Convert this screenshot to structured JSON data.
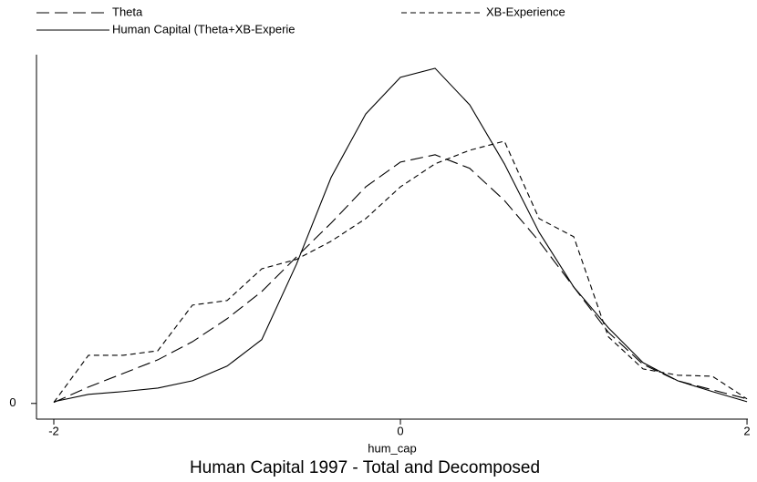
{
  "chart_data": {
    "type": "line",
    "title": "Human Capital 1997 - Total and Decomposed",
    "x_label": "hum_cap",
    "x": [
      -2,
      -1.8,
      -1.6,
      -1.4,
      -1.2,
      -1,
      -0.8,
      -0.6,
      -0.4,
      -0.2,
      0,
      0.2,
      0.4,
      0.6,
      0.8,
      1,
      1.2,
      1.4,
      1.6,
      1.8,
      2
    ],
    "series": [
      {
        "name": "Theta",
        "color": "#000000",
        "dash": "14 6",
        "values": [
          0.003,
          0.047,
          0.086,
          0.125,
          0.177,
          0.243,
          0.321,
          0.42,
          0.517,
          0.621,
          0.692,
          0.713,
          0.674,
          0.582,
          0.465,
          0.334,
          0.204,
          0.112,
          0.065,
          0.039,
          0.013
        ]
      },
      {
        "name": "XB-Experience",
        "color": "#000000",
        "dash": "6 4",
        "values": [
          0.003,
          0.138,
          0.138,
          0.151,
          0.282,
          0.295,
          0.386,
          0.413,
          0.465,
          0.53,
          0.621,
          0.687,
          0.726,
          0.752,
          0.53,
          0.478,
          0.191,
          0.099,
          0.081,
          0.078,
          0.013
        ]
      },
      {
        "name": "Human Capital (Theta+XB-Experie",
        "color": "#000000",
        "dash": "none",
        "values": [
          0.005,
          0.026,
          0.034,
          0.044,
          0.065,
          0.107,
          0.183,
          0.399,
          0.648,
          0.83,
          0.935,
          0.961,
          0.856,
          0.687,
          0.491,
          0.334,
          0.217,
          0.117,
          0.065,
          0.034,
          0.005
        ]
      }
    ],
    "xlim": [
      -2.1,
      2.005
    ],
    "xticks": [
      -2,
      0,
      2
    ],
    "ylim": [
      -0.045,
      1
    ],
    "yticks": [
      0
    ],
    "grid": false
  }
}
